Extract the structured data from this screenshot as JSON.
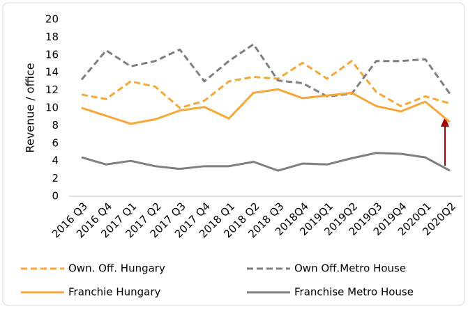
{
  "chart_data": {
    "type": "line",
    "y_label": "Revenue / office",
    "categories": [
      "2016 Q3",
      "2016 Q4",
      "2017 Q1",
      "2017 Q2",
      "2017 Q3",
      "2017 Q4",
      "2018 Q1",
      "2018 Q2",
      "2018 Q3",
      "2018Q4",
      "2019Q1",
      "2019Q2",
      "2019Q3",
      "2019Q4",
      "2020Q1",
      "2020Q2"
    ],
    "series": [
      {
        "name": "Own. Off. Hungary",
        "color": "#f7a738",
        "dashed": true,
        "values": [
          11.5,
          11.0,
          13.0,
          12.4,
          10.0,
          10.8,
          13.0,
          13.5,
          13.3,
          15.1,
          13.3,
          15.3,
          11.8,
          10.2,
          11.3,
          10.5
        ]
      },
      {
        "name": "Own Off.Metro House",
        "color": "#7f7f7f",
        "dashed": true,
        "values": [
          13.2,
          16.5,
          14.7,
          15.3,
          16.6,
          13.0,
          15.3,
          17.2,
          13.1,
          12.8,
          11.3,
          11.6,
          15.3,
          15.3,
          15.5,
          11.6
        ]
      },
      {
        "name": "Franchie Hungary",
        "color": "#f7a738",
        "dashed": false,
        "values": [
          10.0,
          9.1,
          8.2,
          8.7,
          9.7,
          10.1,
          8.8,
          11.7,
          12.1,
          11.1,
          11.4,
          11.7,
          10.2,
          9.6,
          10.7,
          8.4
        ]
      },
      {
        "name": "Franchise Metro House",
        "color": "#7f7f7f",
        "dashed": false,
        "values": [
          4.4,
          3.6,
          4.0,
          3.4,
          3.1,
          3.4,
          3.4,
          3.9,
          2.9,
          3.7,
          3.6,
          4.3,
          4.9,
          4.8,
          4.4,
          2.9
        ]
      }
    ],
    "ylim": [
      0,
      20
    ],
    "yticks": [
      0,
      2,
      4,
      6,
      8,
      10,
      12,
      14,
      16,
      18,
      20
    ],
    "grid": false
  }
}
